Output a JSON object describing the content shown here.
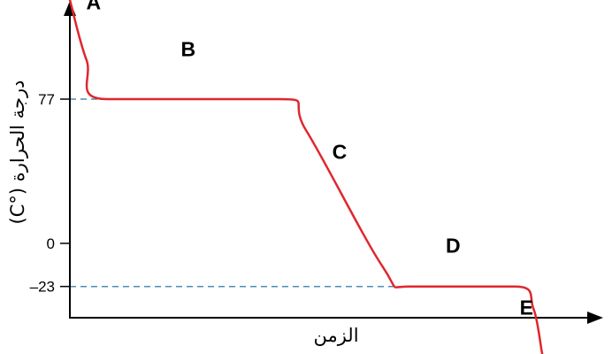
{
  "chart_data": {
    "type": "line",
    "xlabel": "الزمن",
    "ylabel": "درجة الحرارة (°C)",
    "y_ticks": [
      {
        "value": 77,
        "label": "77"
      },
      {
        "value": 0,
        "label": "0"
      },
      {
        "value": -23,
        "label": "–23"
      }
    ],
    "reference_lines": [
      77,
      -23
    ],
    "x_ticks": [],
    "grid": false,
    "legend": "none",
    "colors": {
      "curve": "#e0262d",
      "reference": "#4a8fae",
      "axis": "#000000"
    },
    "series": [
      {
        "points": [
          {
            "t": 0.0,
            "y": 130
          },
          {
            "t": 0.035,
            "y": 98
          },
          {
            "t": 0.08,
            "y": 77
          },
          {
            "t": 0.44,
            "y": 77
          },
          {
            "t": 0.5,
            "y": 60
          },
          {
            "t": 0.66,
            "y": -12
          },
          {
            "t": 0.72,
            "y": -23
          },
          {
            "t": 0.94,
            "y": -23
          },
          {
            "t": 0.98,
            "y": -35
          },
          {
            "t": 1.0,
            "y": -60
          }
        ]
      }
    ],
    "segments": [
      {
        "label": "A",
        "t": 0.05,
        "y": 125
      },
      {
        "label": "B",
        "t": 0.25,
        "y": 100
      },
      {
        "label": "C",
        "t": 0.57,
        "y": 45
      },
      {
        "label": "D",
        "t": 0.81,
        "y": -5
      },
      {
        "label": "E",
        "t": 0.965,
        "y": -38
      }
    ]
  }
}
